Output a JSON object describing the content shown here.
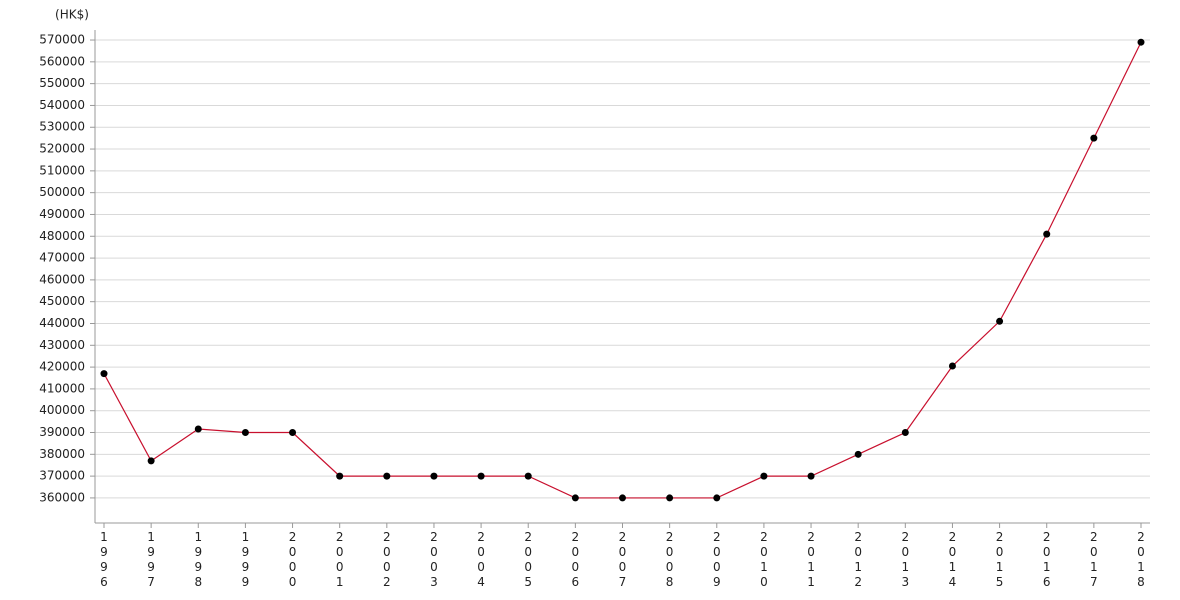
{
  "chart_data": {
    "type": "line",
    "y_label": "(HK$)",
    "categories": [
      "1996",
      "1997",
      "1998",
      "1999",
      "2000",
      "2001",
      "2002",
      "2003",
      "2004",
      "2005",
      "2006",
      "2007",
      "2008",
      "2009",
      "2010",
      "2011",
      "2012",
      "2013",
      "2014",
      "2015",
      "2016",
      "2017",
      "2018"
    ],
    "series": [
      {
        "color": "#c8102e",
        "marker_color": "#000000",
        "values": [
          417000,
          377000,
          391600,
          390000,
          390000,
          370000,
          370000,
          370000,
          370000,
          370000,
          360000,
          360000,
          360000,
          360000,
          370000,
          370000,
          380000,
          390000,
          420500,
          441000,
          481000,
          525000,
          569000
        ]
      }
    ],
    "ylim": [
      348500,
      574600
    ],
    "yticks": [
      360000,
      370000,
      380000,
      390000,
      400000,
      410000,
      420000,
      430000,
      440000,
      450000,
      460000,
      470000,
      480000,
      490000,
      500000,
      510000,
      520000,
      530000,
      540000,
      550000,
      560000,
      570000
    ],
    "grid": true
  }
}
